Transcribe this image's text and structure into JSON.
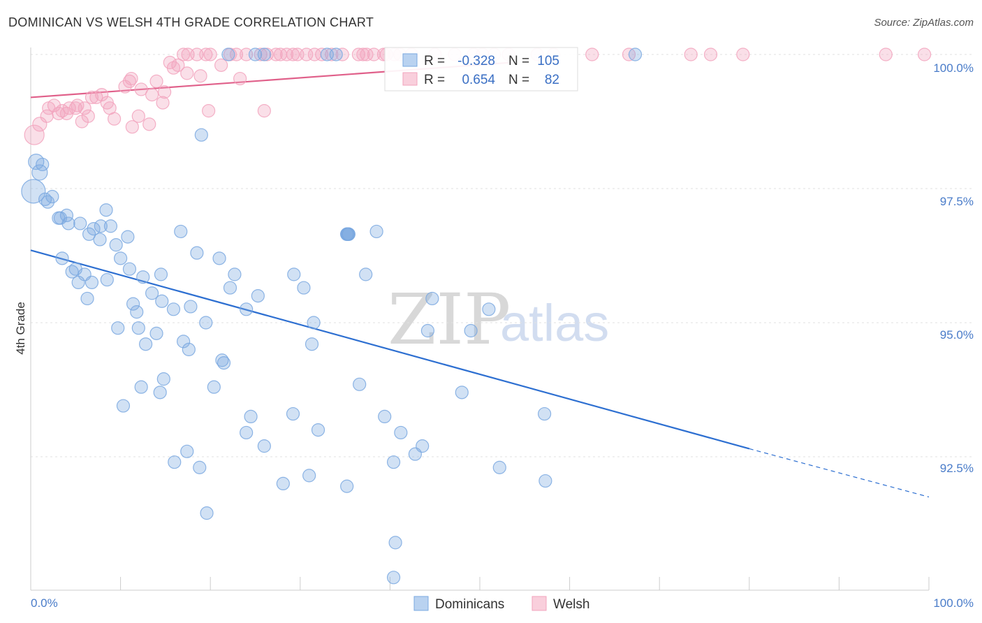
{
  "header": {
    "title": "DOMINICAN VS WELSH 4TH GRADE CORRELATION CHART",
    "source": "Source: ZipAtlas.com"
  },
  "watermark": {
    "zip": "ZIP",
    "atlas": "atlas"
  },
  "stats": {
    "r_label": "R =",
    "n_label": "N =",
    "dominicans": {
      "r": "-0.328",
      "n": "105"
    },
    "welsh": {
      "r": "0.654",
      "n": "82"
    }
  },
  "legend": {
    "dominicans": "Dominicans",
    "welsh": "Welsh"
  },
  "chart_data": {
    "type": "scatter",
    "title": "DOMINICAN VS WELSH 4TH GRADE CORRELATION CHART",
    "xlabel": "",
    "ylabel": "4th Grade",
    "xlim": [
      0,
      100
    ],
    "ylim": [
      90.2,
      100.3
    ],
    "x_tick_labels": [
      "0.0%",
      "100.0%"
    ],
    "y_ticks": [
      92.5,
      95.0,
      97.5,
      100.0
    ],
    "y_tick_labels": [
      "92.5%",
      "95.0%",
      "97.5%",
      "100.0%"
    ],
    "grid": true,
    "legend_position": "bottom-center",
    "colors": {
      "dominicans": "#7aa8e0",
      "dominicans_line": "#2d6fd1",
      "welsh": "#f2a3bd",
      "welsh_line": "#e0608a"
    },
    "series": [
      {
        "name": "Dominicans",
        "trend": {
          "x0": 0,
          "y0": 96.35,
          "x1": 80,
          "y1": 92.65,
          "dashed_to_x": 100,
          "dashed_to_y": 91.75
        },
        "points": [
          [
            0.3,
            97.45
          ],
          [
            0.6,
            98.0
          ],
          [
            1.0,
            97.8
          ],
          [
            1.3,
            97.95
          ],
          [
            1.6,
            97.3
          ],
          [
            1.9,
            97.25
          ],
          [
            2.4,
            97.35
          ],
          [
            3.1,
            96.95
          ],
          [
            3.3,
            96.95
          ],
          [
            4.0,
            97.0
          ],
          [
            4.2,
            96.85
          ],
          [
            5.5,
            96.85
          ],
          [
            6.5,
            96.65
          ],
          [
            7.0,
            96.75
          ],
          [
            7.7,
            96.55
          ],
          [
            7.8,
            96.8
          ],
          [
            8.4,
            97.1
          ],
          [
            8.9,
            96.8
          ],
          [
            10.8,
            96.6
          ],
          [
            9.5,
            96.45
          ],
          [
            3.5,
            96.2
          ],
          [
            10.0,
            96.2
          ],
          [
            4.6,
            95.95
          ],
          [
            5.0,
            96.0
          ],
          [
            6.0,
            95.9
          ],
          [
            11.0,
            96.0
          ],
          [
            5.3,
            95.75
          ],
          [
            6.8,
            95.75
          ],
          [
            8.5,
            95.8
          ],
          [
            12.5,
            95.85
          ],
          [
            14.5,
            95.9
          ],
          [
            6.3,
            95.45
          ],
          [
            11.4,
            95.35
          ],
          [
            13.5,
            95.55
          ],
          [
            14.6,
            95.4
          ],
          [
            11.8,
            95.2
          ],
          [
            15.9,
            95.25
          ],
          [
            17.8,
            95.3
          ],
          [
            9.7,
            94.9
          ],
          [
            12.0,
            94.9
          ],
          [
            14.0,
            94.8
          ],
          [
            19.5,
            95.0
          ],
          [
            17.0,
            94.65
          ],
          [
            12.8,
            94.6
          ],
          [
            17.6,
            94.5
          ],
          [
            21.3,
            94.3
          ],
          [
            21.5,
            94.25
          ],
          [
            16.7,
            96.7
          ],
          [
            18.5,
            96.3
          ],
          [
            21.0,
            96.2
          ],
          [
            22.7,
            95.9
          ],
          [
            22.2,
            95.65
          ],
          [
            24.0,
            95.25
          ],
          [
            25.3,
            95.5
          ],
          [
            29.3,
            95.9
          ],
          [
            30.4,
            95.65
          ],
          [
            31.5,
            95.0
          ],
          [
            31.3,
            94.6
          ],
          [
            35.2,
            96.65
          ],
          [
            35.4,
            96.65
          ],
          [
            35.2,
            96.65
          ],
          [
            35.3,
            96.65
          ],
          [
            38.5,
            96.7
          ],
          [
            35.3,
            96.65
          ],
          [
            35.4,
            96.65
          ],
          [
            37.3,
            95.9
          ],
          [
            14.8,
            93.95
          ],
          [
            12.3,
            93.8
          ],
          [
            14.4,
            93.7
          ],
          [
            10.3,
            93.45
          ],
          [
            20.4,
            93.8
          ],
          [
            24.5,
            93.25
          ],
          [
            24.0,
            92.95
          ],
          [
            26.0,
            92.7
          ],
          [
            29.2,
            93.3
          ],
          [
            32.0,
            93.0
          ],
          [
            17.4,
            92.6
          ],
          [
            16.0,
            92.4
          ],
          [
            18.8,
            92.3
          ],
          [
            28.1,
            92.0
          ],
          [
            31.0,
            92.15
          ],
          [
            35.2,
            91.95
          ],
          [
            39.4,
            93.25
          ],
          [
            41.2,
            92.95
          ],
          [
            40.4,
            92.4
          ],
          [
            42.8,
            92.55
          ],
          [
            43.6,
            92.7
          ],
          [
            36.6,
            93.85
          ],
          [
            48.0,
            93.7
          ],
          [
            52.2,
            92.3
          ],
          [
            57.2,
            93.3
          ],
          [
            57.3,
            92.05
          ],
          [
            19.6,
            91.45
          ],
          [
            40.6,
            90.9
          ],
          [
            40.4,
            90.25
          ],
          [
            44.7,
            95.45
          ],
          [
            44.2,
            94.85
          ],
          [
            49.0,
            94.85
          ],
          [
            51.0,
            95.25
          ],
          [
            19.0,
            98.5
          ],
          [
            22.0,
            100.0
          ],
          [
            33.0,
            100.0
          ],
          [
            34.0,
            100.0
          ],
          [
            67.3,
            100.0
          ],
          [
            26.0,
            100.0
          ],
          [
            25.0,
            100.0
          ]
        ]
      },
      {
        "name": "Welsh",
        "trend": {
          "x0": 0,
          "y0": 99.2,
          "x1": 53.5,
          "y1": 99.85
        },
        "points": [
          [
            0.4,
            98.5
          ],
          [
            1.0,
            98.7
          ],
          [
            1.8,
            98.85
          ],
          [
            2.0,
            99.0
          ],
          [
            2.6,
            99.05
          ],
          [
            3.1,
            98.9
          ],
          [
            3.5,
            98.95
          ],
          [
            4.0,
            98.9
          ],
          [
            4.3,
            99.0
          ],
          [
            5.0,
            99.0
          ],
          [
            5.2,
            99.05
          ],
          [
            6.0,
            99.0
          ],
          [
            5.7,
            98.75
          ],
          [
            6.4,
            98.85
          ],
          [
            6.8,
            99.2
          ],
          [
            7.3,
            99.2
          ],
          [
            7.9,
            99.25
          ],
          [
            8.5,
            99.1
          ],
          [
            8.8,
            99.0
          ],
          [
            9.3,
            98.8
          ],
          [
            10.5,
            99.4
          ],
          [
            11.0,
            99.5
          ],
          [
            11.2,
            99.55
          ],
          [
            11.3,
            98.65
          ],
          [
            12.0,
            98.85
          ],
          [
            12.3,
            99.35
          ],
          [
            13.2,
            98.7
          ],
          [
            13.5,
            99.25
          ],
          [
            14.0,
            99.5
          ],
          [
            14.7,
            99.1
          ],
          [
            14.9,
            99.3
          ],
          [
            15.5,
            99.85
          ],
          [
            15.9,
            99.75
          ],
          [
            16.4,
            99.8
          ],
          [
            17.0,
            100.0
          ],
          [
            17.5,
            100.0
          ],
          [
            17.4,
            99.65
          ],
          [
            18.5,
            100.0
          ],
          [
            18.9,
            99.6
          ],
          [
            19.5,
            100.0
          ],
          [
            20.0,
            100.0
          ],
          [
            19.8,
            98.95
          ],
          [
            21.2,
            99.8
          ],
          [
            22.2,
            100.0
          ],
          [
            22.9,
            100.0
          ],
          [
            23.3,
            99.55
          ],
          [
            24.0,
            100.0
          ],
          [
            25.6,
            100.0
          ],
          [
            26.3,
            100.0
          ],
          [
            26.0,
            98.95
          ],
          [
            27.3,
            100.0
          ],
          [
            27.8,
            100.0
          ],
          [
            28.5,
            100.0
          ],
          [
            29.2,
            100.0
          ],
          [
            29.7,
            100.0
          ],
          [
            30.7,
            100.0
          ],
          [
            31.6,
            100.0
          ],
          [
            32.4,
            100.0
          ],
          [
            33.5,
            100.0
          ],
          [
            34.7,
            100.0
          ],
          [
            36.5,
            100.0
          ],
          [
            37.0,
            100.0
          ],
          [
            37.4,
            100.0
          ],
          [
            38.2,
            100.0
          ],
          [
            39.3,
            100.0
          ],
          [
            39.6,
            100.0
          ],
          [
            40.5,
            100.0
          ],
          [
            41.1,
            100.0
          ],
          [
            42.4,
            100.0
          ],
          [
            45.0,
            100.0
          ],
          [
            47.2,
            100.0
          ],
          [
            49.3,
            100.0
          ],
          [
            50.3,
            100.0
          ],
          [
            51.6,
            100.0
          ],
          [
            53.2,
            100.0
          ],
          [
            56.4,
            100.0
          ],
          [
            58.2,
            100.0
          ],
          [
            62.5,
            100.0
          ],
          [
            66.6,
            100.0
          ],
          [
            73.5,
            100.0
          ],
          [
            75.7,
            100.0
          ],
          [
            79.3,
            100.0
          ],
          [
            95.2,
            100.0
          ],
          [
            99.5,
            100.0
          ]
        ]
      }
    ]
  }
}
